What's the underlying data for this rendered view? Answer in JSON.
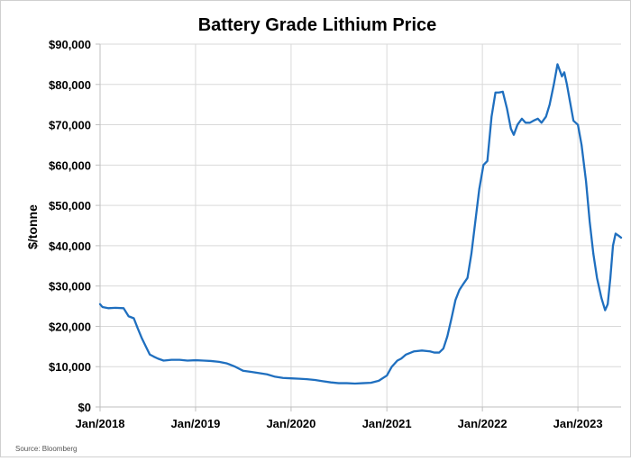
{
  "chart_data": {
    "type": "line",
    "title": "Battery Grade Lithium Price",
    "xlabel": "",
    "ylabel": "$/tonne",
    "source": "Source: Bloomberg",
    "ylim": [
      0,
      90000
    ],
    "xlim": [
      "2018-01-01",
      "2023-06-15"
    ],
    "grid": true,
    "legend": "none",
    "line_color": "#1f6fbf",
    "y_ticks": [
      {
        "value": 0,
        "label": "$0"
      },
      {
        "value": 10000,
        "label": "$10,000"
      },
      {
        "value": 20000,
        "label": "$20,000"
      },
      {
        "value": 30000,
        "label": "$30,000"
      },
      {
        "value": 40000,
        "label": "$40,000"
      },
      {
        "value": 50000,
        "label": "$50,000"
      },
      {
        "value": 60000,
        "label": "$60,000"
      },
      {
        "value": 70000,
        "label": "$70,000"
      },
      {
        "value": 80000,
        "label": "$80,000"
      },
      {
        "value": 90000,
        "label": "$90,000"
      }
    ],
    "x_ticks": [
      {
        "value": "2018-01-01",
        "label": "Jan/2018"
      },
      {
        "value": "2019-01-01",
        "label": "Jan/2019"
      },
      {
        "value": "2020-01-01",
        "label": "Jan/2020"
      },
      {
        "value": "2021-01-01",
        "label": "Jan/2021"
      },
      {
        "value": "2022-01-01",
        "label": "Jan/2022"
      },
      {
        "value": "2023-01-01",
        "label": "Jan/2023"
      }
    ],
    "series": [
      {
        "x": [
          "2018-01-01",
          "2018-01-10",
          "2018-02-01",
          "2018-03-01",
          "2018-04-01",
          "2018-04-20",
          "2018-05-10",
          "2018-05-25",
          "2018-06-10",
          "2018-06-25",
          "2018-07-10",
          "2018-07-25",
          "2018-08-10",
          "2018-09-01",
          "2018-10-01",
          "2018-11-01",
          "2018-12-01",
          "2019-01-01",
          "2019-02-01",
          "2019-03-01",
          "2019-04-01",
          "2019-05-01",
          "2019-06-01",
          "2019-07-01",
          "2019-08-01",
          "2019-09-01",
          "2019-10-01",
          "2019-11-01",
          "2019-12-01",
          "2020-01-01",
          "2020-02-01",
          "2020-03-01",
          "2020-04-01",
          "2020-05-01",
          "2020-06-01",
          "2020-07-01",
          "2020-08-01",
          "2020-09-01",
          "2020-10-01",
          "2020-11-01",
          "2020-12-01",
          "2021-01-01",
          "2021-01-20",
          "2021-02-10",
          "2021-02-25",
          "2021-03-15",
          "2021-04-15",
          "2021-05-15",
          "2021-06-15",
          "2021-07-01",
          "2021-07-20",
          "2021-08-05",
          "2021-08-20",
          "2021-09-05",
          "2021-09-20",
          "2021-10-05",
          "2021-10-20",
          "2021-11-05",
          "2021-11-20",
          "2021-12-05",
          "2021-12-20",
          "2022-01-05",
          "2022-01-20",
          "2022-02-05",
          "2022-02-20",
          "2022-03-05",
          "2022-03-20",
          "2022-04-05",
          "2022-04-20",
          "2022-05-01",
          "2022-05-15",
          "2022-06-01",
          "2022-06-15",
          "2022-07-01",
          "2022-07-15",
          "2022-08-01",
          "2022-08-15",
          "2022-09-01",
          "2022-09-15",
          "2022-10-01",
          "2022-10-15",
          "2022-11-01",
          "2022-11-10",
          "2022-11-20",
          "2022-12-01",
          "2022-12-15",
          "2023-01-01",
          "2023-01-15",
          "2023-02-01",
          "2023-02-15",
          "2023-03-01",
          "2023-03-15",
          "2023-04-01",
          "2023-04-15",
          "2023-04-25",
          "2023-05-05",
          "2023-05-15",
          "2023-05-25",
          "2023-06-05",
          "2023-06-15"
        ],
        "values": [
          25500,
          24800,
          24500,
          24600,
          24500,
          22500,
          22000,
          19500,
          17000,
          15000,
          13000,
          12500,
          12000,
          11500,
          11700,
          11700,
          11500,
          11600,
          11500,
          11400,
          11200,
          10800,
          10000,
          9000,
          8700,
          8400,
          8100,
          7500,
          7200,
          7100,
          7000,
          6900,
          6700,
          6400,
          6100,
          5900,
          5900,
          5800,
          5900,
          6000,
          6500,
          7800,
          10000,
          11500,
          12000,
          13000,
          13800,
          14000,
          13800,
          13500,
          13500,
          14500,
          17500,
          22000,
          26500,
          29000,
          30500,
          32000,
          38000,
          46000,
          54000,
          60000,
          61000,
          72000,
          78000,
          78000,
          78200,
          74000,
          69000,
          67500,
          70000,
          71500,
          70500,
          70500,
          71000,
          71500,
          70500,
          72000,
          75000,
          80000,
          85000,
          82000,
          83000,
          80000,
          76000,
          71000,
          70000,
          65000,
          56000,
          46000,
          38000,
          32000,
          27000,
          24000,
          25500,
          32000,
          40000,
          43000,
          42500,
          42000
        ]
      }
    ]
  }
}
